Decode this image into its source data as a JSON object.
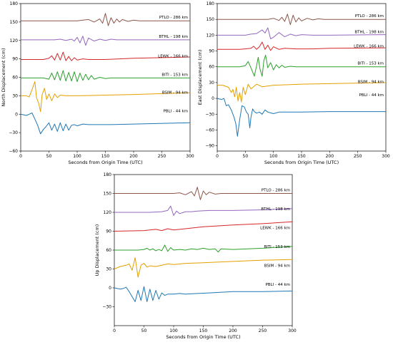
{
  "chart_data": [
    {
      "type": "line",
      "xlabel": "Seconds from Origin Time (UTC)",
      "ylabel": "North Displacement (cm)",
      "xlim": [
        0,
        300
      ],
      "ylim": [
        -60,
        180
      ],
      "xticks": [
        "0",
        "50",
        "100",
        "150",
        "200",
        "250",
        "300"
      ],
      "yticks": [
        "−60",
        "−30",
        "0",
        "30",
        "60",
        "90",
        "120",
        "150",
        "180"
      ],
      "series": [
        {
          "name": "PTLO - 286 km",
          "color": "#8c564b",
          "offset": 152,
          "x": [
            0,
            100,
            110,
            120,
            130,
            140,
            145,
            150,
            155,
            160,
            165,
            170,
            175,
            180,
            190,
            200,
            210,
            300
          ],
          "y": [
            0,
            0,
            1,
            2,
            -2,
            3,
            -4,
            12,
            -8,
            5,
            -4,
            3,
            -2,
            2,
            -1,
            1,
            0,
            0
          ]
        },
        {
          "name": "BTHL - 198 km",
          "color": "#9467bd",
          "offset": 121,
          "x": [
            0,
            60,
            70,
            80,
            90,
            95,
            100,
            105,
            110,
            115,
            120,
            130,
            140,
            150,
            160,
            170,
            180,
            200,
            300
          ],
          "y": [
            0,
            0,
            1,
            -1,
            1,
            -2,
            4,
            -5,
            6,
            -9,
            3,
            -2,
            1,
            -1,
            1,
            0,
            0,
            0,
            0
          ]
        },
        {
          "name": "LEWK - 166 km",
          "color": "#d62728",
          "offset": 89,
          "x": [
            0,
            40,
            50,
            55,
            60,
            65,
            70,
            75,
            80,
            85,
            90,
            95,
            100,
            110,
            120,
            130,
            150,
            200,
            300
          ],
          "y": [
            0,
            0,
            2,
            6,
            -1,
            10,
            -1,
            12,
            -2,
            5,
            -2,
            3,
            -1,
            1,
            0,
            0,
            0,
            2,
            4
          ]
        },
        {
          "name": "BITI - 153 km",
          "color": "#2ca02c",
          "offset": 59,
          "x": [
            0,
            40,
            50,
            55,
            60,
            65,
            70,
            75,
            80,
            85,
            90,
            95,
            100,
            105,
            110,
            115,
            120,
            125,
            130,
            140,
            150,
            160,
            300
          ],
          "y": [
            0,
            0,
            -2,
            8,
            -3,
            10,
            -4,
            12,
            -5,
            9,
            -5,
            10,
            -6,
            8,
            -4,
            6,
            -3,
            4,
            -2,
            1,
            -1,
            0,
            0
          ]
        },
        {
          "name": "BSIM - 94 km",
          "color": "#e69f00",
          "offset": 30,
          "x": [
            0,
            10,
            15,
            20,
            25,
            28,
            32,
            35,
            38,
            42,
            46,
            50,
            55,
            60,
            65,
            70,
            80,
            100,
            150,
            200,
            300
          ],
          "y": [
            0,
            0,
            -2,
            10,
            23,
            -3,
            -13,
            -26,
            2,
            12,
            -6,
            3,
            -8,
            3,
            -3,
            1,
            0,
            0,
            1,
            2,
            5
          ]
        },
        {
          "name": "PBLI - 44 km",
          "color": "#1f77b4",
          "offset": 0,
          "x": [
            0,
            10,
            15,
            20,
            25,
            30,
            35,
            40,
            45,
            50,
            55,
            60,
            65,
            70,
            75,
            80,
            85,
            90,
            95,
            100,
            110,
            120,
            140,
            160,
            200,
            300
          ],
          "y": [
            0,
            -2,
            0,
            2,
            -8,
            -18,
            -32,
            -25,
            -20,
            -14,
            -26,
            -16,
            -28,
            -14,
            -27,
            -16,
            -26,
            -18,
            -17,
            -19,
            -16,
            -17,
            -17,
            -17,
            -16,
            -14
          ]
        }
      ]
    },
    {
      "type": "line",
      "xlabel": "Seconds from Origin Time (UTC)",
      "ylabel": "East Displacement (cm)",
      "xlim": [
        0,
        300
      ],
      "ylim": [
        -100,
        180
      ],
      "xticks": [
        "0",
        "50",
        "100",
        "150",
        "200",
        "250",
        "300"
      ],
      "yticks": [
        "−90",
        "−60",
        "−30",
        "0",
        "30",
        "60",
        "90",
        "120",
        "150",
        "180"
      ],
      "series": [
        {
          "name": "PTLO - 286 km",
          "color": "#8c564b",
          "offset": 150,
          "x": [
            0,
            90,
            100,
            110,
            115,
            120,
            125,
            130,
            135,
            140,
            145,
            150,
            160,
            170,
            180,
            190,
            200,
            300
          ],
          "y": [
            0,
            0,
            2,
            -2,
            4,
            -4,
            10,
            -10,
            8,
            -5,
            3,
            -3,
            2,
            -1,
            1,
            0,
            0,
            0
          ]
        },
        {
          "name": "BTHL - 198 km",
          "color": "#9467bd",
          "offset": 120,
          "x": [
            0,
            50,
            60,
            70,
            80,
            85,
            90,
            95,
            100,
            110,
            120,
            130,
            140,
            150,
            170,
            200,
            300
          ],
          "y": [
            0,
            0,
            2,
            3,
            10,
            4,
            14,
            -7,
            -4,
            5,
            -3,
            2,
            -1,
            1,
            0,
            0,
            1
          ]
        },
        {
          "name": "LEWK - 166 km",
          "color": "#d62728",
          "offset": 93,
          "x": [
            0,
            40,
            50,
            60,
            65,
            70,
            75,
            80,
            85,
            90,
            95,
            100,
            110,
            120,
            140,
            170,
            200,
            300
          ],
          "y": [
            0,
            0,
            1,
            2,
            6,
            0,
            5,
            14,
            0,
            8,
            -2,
            5,
            0,
            2,
            1,
            1,
            2,
            3
          ]
        },
        {
          "name": "BITI - 153 km",
          "color": "#2ca02c",
          "offset": 60,
          "x": [
            0,
            40,
            50,
            55,
            60,
            63,
            66,
            70,
            73,
            76,
            80,
            83,
            86,
            90,
            95,
            100,
            105,
            110,
            115,
            120,
            130,
            140,
            160,
            300
          ],
          "y": [
            0,
            0,
            2,
            10,
            -2,
            -10,
            -18,
            2,
            18,
            -4,
            -18,
            12,
            22,
            -2,
            8,
            -6,
            4,
            -2,
            3,
            -1,
            1,
            0,
            0,
            0
          ]
        },
        {
          "name": "BSIM - 94 km",
          "color": "#e69f00",
          "offset": 25,
          "x": [
            0,
            10,
            15,
            20,
            25,
            28,
            31,
            34,
            37,
            40,
            43,
            46,
            50,
            55,
            60,
            70,
            80,
            100,
            150,
            200,
            300
          ],
          "y": [
            0,
            0,
            -2,
            -4,
            -14,
            -8,
            -22,
            -4,
            -30,
            -14,
            -32,
            -4,
            -18,
            2,
            -7,
            2,
            -3,
            0,
            2,
            3,
            5
          ]
        },
        {
          "name": "PBLI - 44 km",
          "color": "#1f77b4",
          "offset": 0,
          "x": [
            0,
            8,
            12,
            16,
            20,
            25,
            30,
            33,
            36,
            40,
            44,
            48,
            52,
            55,
            58,
            60,
            63,
            66,
            70,
            75,
            80,
            85,
            90,
            100,
            110,
            120,
            150,
            200,
            300
          ],
          "y": [
            0,
            -2,
            0,
            -14,
            -12,
            -22,
            -36,
            -48,
            -72,
            -40,
            -14,
            -16,
            -26,
            -30,
            -56,
            -36,
            -20,
            -25,
            -28,
            -26,
            -30,
            -22,
            -26,
            -29,
            -26,
            -26,
            -26,
            -25,
            -25
          ]
        }
      ]
    },
    {
      "type": "line",
      "xlabel": "Seconds from Origin Time (UTC)",
      "ylabel": "Up Displacement (cm)",
      "xlim": [
        0,
        300
      ],
      "ylim": [
        -60,
        180
      ],
      "xticks": [
        "0",
        "50",
        "100",
        "150",
        "200",
        "250",
        "300"
      ],
      "yticks": [
        "−30",
        "0",
        "30",
        "60",
        "90",
        "120",
        "150",
        "180"
      ],
      "series": [
        {
          "name": "PTLO - 286 km",
          "color": "#8c564b",
          "offset": 150,
          "x": [
            0,
            100,
            110,
            120,
            130,
            135,
            140,
            145,
            150,
            155,
            160,
            170,
            180,
            200,
            300
          ],
          "y": [
            0,
            0,
            1,
            -2,
            3,
            -4,
            10,
            -10,
            4,
            -2,
            2,
            -1,
            0,
            0,
            0
          ]
        },
        {
          "name": "BTHL - 198 km",
          "color": "#9467bd",
          "offset": 120,
          "x": [
            0,
            60,
            80,
            90,
            95,
            100,
            105,
            110,
            120,
            130,
            140,
            160,
            200,
            250,
            300
          ],
          "y": [
            0,
            0,
            1,
            3,
            10,
            -5,
            2,
            -2,
            1,
            1,
            2,
            3,
            3,
            4,
            6
          ]
        },
        {
          "name": "LEWK - 166 km",
          "color": "#d62728",
          "offset": 90,
          "x": [
            0,
            50,
            70,
            80,
            90,
            100,
            110,
            120,
            150,
            200,
            250,
            300
          ],
          "y": [
            0,
            1,
            3,
            1,
            4,
            2,
            3,
            4,
            7,
            10,
            12,
            15
          ]
        },
        {
          "name": "BITI - 153 km",
          "color": "#2ca02c",
          "offset": 60,
          "x": [
            0,
            40,
            50,
            55,
            60,
            65,
            70,
            75,
            80,
            85,
            90,
            95,
            100,
            110,
            120,
            130,
            140,
            150,
            160,
            170,
            175,
            180,
            200,
            250,
            300
          ],
          "y": [
            0,
            0,
            1,
            3,
            0,
            2,
            -1,
            1,
            -1,
            8,
            -2,
            4,
            0,
            1,
            0,
            2,
            1,
            3,
            1,
            2,
            -3,
            2,
            1,
            3,
            6
          ]
        },
        {
          "name": "BSIM - 94 km",
          "color": "#e69f00",
          "offset": 30,
          "x": [
            0,
            10,
            20,
            25,
            30,
            35,
            40,
            45,
            50,
            55,
            60,
            70,
            80,
            90,
            100,
            120,
            150,
            200,
            250,
            300
          ],
          "y": [
            0,
            4,
            6,
            8,
            -2,
            18,
            -13,
            6,
            9,
            3,
            5,
            4,
            6,
            8,
            7,
            9,
            10,
            12,
            14,
            15
          ]
        },
        {
          "name": "PBLI - 44 km",
          "color": "#1f77b4",
          "offset": 0,
          "x": [
            0,
            10,
            15,
            20,
            25,
            30,
            35,
            40,
            45,
            50,
            55,
            60,
            65,
            70,
            75,
            80,
            85,
            90,
            100,
            110,
            120,
            140,
            160,
            200,
            250,
            300
          ],
          "y": [
            0,
            -2,
            -1,
            1,
            -6,
            -14,
            -22,
            -4,
            -20,
            2,
            -22,
            -2,
            -20,
            -4,
            -18,
            -8,
            -12,
            -10,
            -10,
            -9,
            -10,
            -9,
            -8,
            -6,
            -6,
            -5
          ]
        }
      ]
    }
  ]
}
